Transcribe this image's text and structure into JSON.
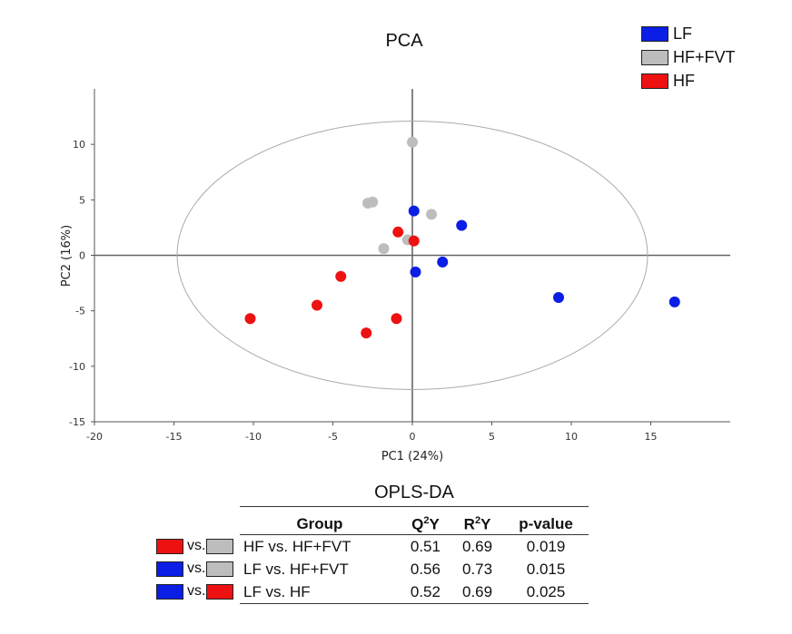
{
  "colors": {
    "LF": "#0a1ee6",
    "HF+FVT": "#bdbdbd",
    "HF": "#ee1111"
  },
  "legend": [
    {
      "label": "LF",
      "color": "#0a1ee6"
    },
    {
      "label": "HF+FVT",
      "color": "#bdbdbd"
    },
    {
      "label": "HF",
      "color": "#ee1111"
    }
  ],
  "chart_data": {
    "type": "scatter",
    "title": "PCA",
    "xlabel": "PC1 (24%)",
    "ylabel": "PC2 (16%)",
    "xlim": [
      -20,
      20
    ],
    "ylim": [
      -15,
      15
    ],
    "xticks": [
      -20,
      -15,
      -10,
      -5,
      0,
      5,
      10,
      15
    ],
    "yticks": [
      -15,
      -10,
      -5,
      0,
      5,
      10
    ],
    "grid": false,
    "legend_position": "top-right",
    "ellipse": {
      "center": [
        0,
        0
      ],
      "x_radius": 14.8,
      "y_radius": 12.1
    },
    "series": [
      {
        "name": "LF",
        "color": "#0a1ee6",
        "points": [
          [
            0.1,
            4.0
          ],
          [
            3.1,
            2.7
          ],
          [
            1.9,
            -0.6
          ],
          [
            0.2,
            -1.5
          ],
          [
            9.2,
            -3.8
          ],
          [
            16.5,
            -4.2
          ]
        ]
      },
      {
        "name": "HF+FVT",
        "color": "#bdbdbd",
        "points": [
          [
            0.0,
            10.2
          ],
          [
            -2.8,
            4.7
          ],
          [
            -2.5,
            4.8
          ],
          [
            1.2,
            3.7
          ],
          [
            -0.3,
            1.4
          ],
          [
            -1.8,
            0.6
          ]
        ]
      },
      {
        "name": "HF",
        "color": "#ee1111",
        "points": [
          [
            -0.9,
            2.1
          ],
          [
            0.1,
            1.3
          ],
          [
            -4.5,
            -1.9
          ],
          [
            -6.0,
            -4.5
          ],
          [
            -10.2,
            -5.7
          ],
          [
            -1.0,
            -5.7
          ],
          [
            -2.9,
            -7.0
          ]
        ]
      }
    ]
  },
  "opls": {
    "title": "OPLS-DA",
    "headers": {
      "group": "Group",
      "q2y_base": "Q",
      "q2y_sup": "2",
      "q2y_tail": "Y",
      "r2y_base": "R",
      "r2y_sup": "2",
      "r2y_tail": "Y",
      "pvalue": "p-value"
    },
    "rows": [
      {
        "group": "HF vs. HF+FVT",
        "q2y": "0.51",
        "r2y": "0.69",
        "p": "0.019"
      },
      {
        "group": "LF vs. HF+FVT",
        "q2y": "0.56",
        "r2y": "0.73",
        "p": "0.015"
      },
      {
        "group": "LF vs. HF",
        "q2y": "0.52",
        "r2y": "0.69",
        "p": "0.025"
      }
    ],
    "key": [
      {
        "vs": "vs.",
        "left": "#ee1111",
        "right": "#bdbdbd"
      },
      {
        "vs": "vs.",
        "left": "#0a1ee6",
        "right": "#bdbdbd"
      },
      {
        "vs": "vs.",
        "left": "#0a1ee6",
        "right": "#ee1111"
      }
    ]
  }
}
